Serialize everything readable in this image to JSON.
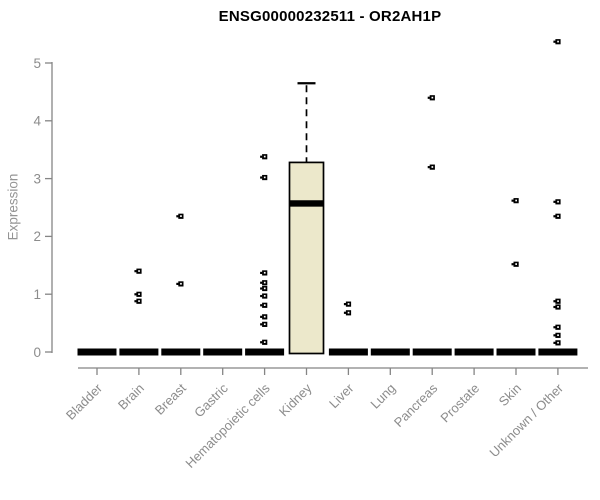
{
  "chart_data": {
    "type": "boxplot",
    "title": "ENSG00000232511 - OR2AH1P",
    "ylabel": "Expression",
    "xlabel": "",
    "ylim": [
      0,
      5.4
    ],
    "y_ticks": [
      0,
      1,
      2,
      3,
      4,
      5
    ],
    "grid": false,
    "legend": null,
    "box_fill_color": "#ece8cb",
    "axis_color": "#858585",
    "label_color": "#8c8c8c",
    "title_color": "#000000",
    "categories": [
      "Bladder",
      "Brain",
      "Breast",
      "Gastric",
      "Hematopoietic cells",
      "Kidney",
      "Liver",
      "Lung",
      "Pancreas",
      "Prostate",
      "Skin",
      "Unknown / Other"
    ],
    "series": [
      {
        "category": "Bladder",
        "median": 0,
        "q1": 0,
        "q3": 0,
        "whisker_low": 0,
        "whisker_high": 0,
        "outliers": []
      },
      {
        "category": "Brain",
        "median": 0,
        "q1": 0,
        "q3": 0,
        "whisker_low": 0,
        "whisker_high": 0,
        "outliers": [
          1.4,
          1.0,
          0.88
        ]
      },
      {
        "category": "Breast",
        "median": 0,
        "q1": 0,
        "q3": 0,
        "whisker_low": 0,
        "whisker_high": 0,
        "outliers": [
          2.35,
          1.18
        ]
      },
      {
        "category": "Gastric",
        "median": 0,
        "q1": 0,
        "q3": 0,
        "whisker_low": 0,
        "whisker_high": 0,
        "outliers": []
      },
      {
        "category": "Hematopoietic cells",
        "median": 0,
        "q1": 0,
        "q3": 0,
        "whisker_low": 0,
        "whisker_high": 0,
        "outliers": [
          3.38,
          3.02,
          1.37,
          1.2,
          1.1,
          0.97,
          0.81,
          0.61,
          0.48,
          0.17
        ]
      },
      {
        "category": "Kidney",
        "median": 2.57,
        "q1": 0,
        "q3": 3.28,
        "whisker_low": 0,
        "whisker_high": 4.65,
        "outliers": []
      },
      {
        "category": "Liver",
        "median": 0,
        "q1": 0,
        "q3": 0,
        "whisker_low": 0,
        "whisker_high": 0,
        "outliers": [
          0.83,
          0.68
        ]
      },
      {
        "category": "Lung",
        "median": 0,
        "q1": 0,
        "q3": 0,
        "whisker_low": 0,
        "whisker_high": 0,
        "outliers": []
      },
      {
        "category": "Pancreas",
        "median": 0,
        "q1": 0,
        "q3": 0,
        "whisker_low": 0,
        "whisker_high": 0,
        "outliers": [
          4.4,
          3.2
        ]
      },
      {
        "category": "Prostate",
        "median": 0,
        "q1": 0,
        "q3": 0,
        "whisker_low": 0,
        "whisker_high": 0,
        "outliers": []
      },
      {
        "category": "Skin",
        "median": 0,
        "q1": 0,
        "q3": 0,
        "whisker_low": 0,
        "whisker_high": 0,
        "outliers": [
          2.62,
          1.52
        ]
      },
      {
        "category": "Unknown / Other",
        "median": 0,
        "q1": 0,
        "q3": 0,
        "whisker_low": 0,
        "whisker_high": 0,
        "outliers": [
          5.37,
          2.6,
          2.35,
          0.88,
          0.78,
          0.43,
          0.29,
          0.16
        ]
      }
    ]
  }
}
